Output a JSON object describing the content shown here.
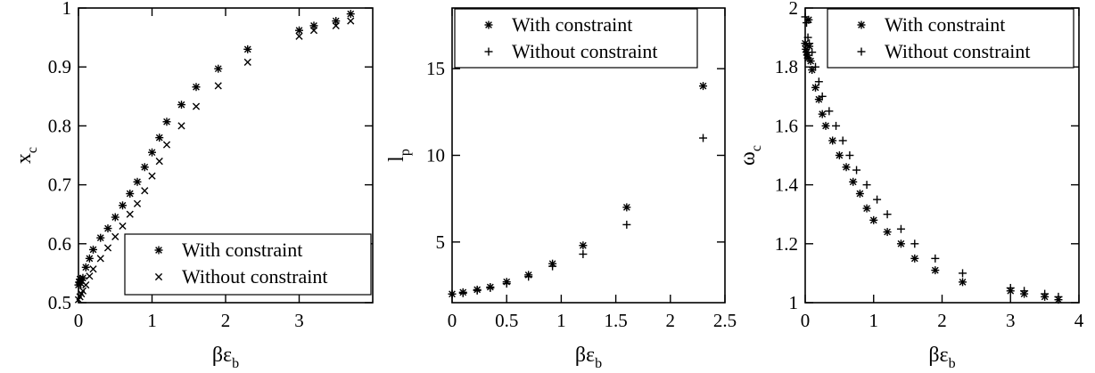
{
  "chart_data": [
    {
      "type": "scatter",
      "title": "",
      "xlabel": "βε",
      "xlabel_sub": "b",
      "ylabel": "x",
      "ylabel_sub": "c",
      "xlim": [
        0,
        4
      ],
      "ylim": [
        0.5,
        1.0
      ],
      "xticks": [
        0,
        1,
        2,
        3
      ],
      "xtick_labels": [
        "0",
        "1",
        "2",
        "3"
      ],
      "yticks": [
        0.5,
        0.6,
        0.7,
        0.8,
        0.9,
        1.0
      ],
      "ytick_labels": [
        "0.5",
        "0.6",
        "0.7",
        "0.8",
        "0.9",
        "1"
      ],
      "legend_position": "bottom-right",
      "grid": false,
      "series": [
        {
          "name": "With constraint",
          "marker": "asterisk",
          "points": [
            [
              0.0,
              0.53
            ],
            [
              0.01,
              0.535
            ],
            [
              0.02,
              0.54
            ],
            [
              0.03,
              0.533
            ],
            [
              0.04,
              0.538
            ],
            [
              0.06,
              0.542
            ],
            [
              0.1,
              0.56
            ],
            [
              0.15,
              0.575
            ],
            [
              0.2,
              0.59
            ],
            [
              0.3,
              0.61
            ],
            [
              0.4,
              0.626
            ],
            [
              0.5,
              0.645
            ],
            [
              0.6,
              0.665
            ],
            [
              0.7,
              0.685
            ],
            [
              0.8,
              0.705
            ],
            [
              0.9,
              0.73
            ],
            [
              1.0,
              0.755
            ],
            [
              1.1,
              0.78
            ],
            [
              1.2,
              0.807
            ],
            [
              1.4,
              0.836
            ],
            [
              1.6,
              0.866
            ],
            [
              1.9,
              0.897
            ],
            [
              2.3,
              0.93
            ],
            [
              3.0,
              0.962
            ],
            [
              3.2,
              0.97
            ],
            [
              3.5,
              0.978
            ],
            [
              3.7,
              0.99
            ]
          ]
        },
        {
          "name": "Without constraint",
          "marker": "cross",
          "points": [
            [
              0.0,
              0.505
            ],
            [
              0.02,
              0.51
            ],
            [
              0.04,
              0.515
            ],
            [
              0.06,
              0.52
            ],
            [
              0.1,
              0.53
            ],
            [
              0.15,
              0.545
            ],
            [
              0.2,
              0.557
            ],
            [
              0.3,
              0.575
            ],
            [
              0.4,
              0.593
            ],
            [
              0.5,
              0.612
            ],
            [
              0.6,
              0.63
            ],
            [
              0.7,
              0.65
            ],
            [
              0.8,
              0.668
            ],
            [
              0.9,
              0.69
            ],
            [
              1.0,
              0.715
            ],
            [
              1.1,
              0.74
            ],
            [
              1.2,
              0.768
            ],
            [
              1.4,
              0.8
            ],
            [
              1.6,
              0.833
            ],
            [
              1.9,
              0.868
            ],
            [
              2.3,
              0.908
            ],
            [
              3.0,
              0.952
            ],
            [
              3.2,
              0.962
            ],
            [
              3.5,
              0.97
            ],
            [
              3.7,
              0.978
            ]
          ]
        }
      ]
    },
    {
      "type": "scatter",
      "title": "",
      "xlabel": "βε",
      "xlabel_sub": "b",
      "ylabel": "l",
      "ylabel_sub": "p",
      "xlim": [
        0,
        2.5
      ],
      "ylim": [
        1.5,
        18.5
      ],
      "xticks": [
        0,
        0.5,
        1,
        1.5,
        2,
        2.5
      ],
      "xtick_labels": [
        "0",
        "0.5",
        "1",
        "1.5",
        "2",
        "2.5"
      ],
      "yticks": [
        5,
        10,
        15
      ],
      "ytick_labels": [
        "5",
        "10",
        "15"
      ],
      "legend_position": "top",
      "grid": false,
      "series": [
        {
          "name": "With constraint",
          "marker": "asterisk",
          "points": [
            [
              0.0,
              2.0
            ],
            [
              0.1,
              2.1
            ],
            [
              0.23,
              2.25
            ],
            [
              0.35,
              2.4
            ],
            [
              0.5,
              2.7
            ],
            [
              0.7,
              3.1
            ],
            [
              0.92,
              3.75
            ],
            [
              1.2,
              4.8
            ],
            [
              1.6,
              7.0
            ],
            [
              2.3,
              14.0
            ]
          ]
        },
        {
          "name": "Without constraint",
          "marker": "plus",
          "points": [
            [
              0.0,
              2.0
            ],
            [
              0.1,
              2.05
            ],
            [
              0.23,
              2.2
            ],
            [
              0.35,
              2.35
            ],
            [
              0.5,
              2.6
            ],
            [
              0.7,
              3.0
            ],
            [
              0.92,
              3.6
            ],
            [
              1.2,
              4.3
            ],
            [
              1.6,
              6.0
            ],
            [
              2.3,
              11.0
            ]
          ]
        }
      ]
    },
    {
      "type": "scatter",
      "title": "",
      "xlabel": "βε",
      "xlabel_sub": "b",
      "ylabel": "ω",
      "ylabel_sub": "c",
      "xlim": [
        0,
        4
      ],
      "ylim": [
        1.0,
        2.0
      ],
      "xticks": [
        0,
        1,
        2,
        3,
        4
      ],
      "xtick_labels": [
        "0",
        "1",
        "2",
        "3",
        "4"
      ],
      "yticks": [
        1.0,
        1.2,
        1.4,
        1.6,
        1.8,
        2.0
      ],
      "ytick_labels": [
        "1",
        "1.2",
        "1.4",
        "1.6",
        "1.8",
        "2"
      ],
      "legend_position": "top-right",
      "grid": false,
      "series": [
        {
          "name": "With constraint",
          "marker": "asterisk",
          "points": [
            [
              0.0,
              1.88
            ],
            [
              0.01,
              1.86
            ],
            [
              0.02,
              1.85
            ],
            [
              0.03,
              1.84
            ],
            [
              0.04,
              1.83
            ],
            [
              0.05,
              1.96
            ],
            [
              0.06,
              1.87
            ],
            [
              0.08,
              1.82
            ],
            [
              0.1,
              1.79
            ],
            [
              0.15,
              1.73
            ],
            [
              0.2,
              1.69
            ],
            [
              0.25,
              1.64
            ],
            [
              0.3,
              1.6
            ],
            [
              0.4,
              1.55
            ],
            [
              0.5,
              1.5
            ],
            [
              0.6,
              1.46
            ],
            [
              0.7,
              1.41
            ],
            [
              0.8,
              1.37
            ],
            [
              0.9,
              1.32
            ],
            [
              1.0,
              1.28
            ],
            [
              1.2,
              1.24
            ],
            [
              1.4,
              1.2
            ],
            [
              1.6,
              1.15
            ],
            [
              1.9,
              1.11
            ],
            [
              2.3,
              1.07
            ],
            [
              3.0,
              1.04
            ],
            [
              3.2,
              1.03
            ],
            [
              3.5,
              1.02
            ],
            [
              3.7,
              1.01
            ]
          ]
        },
        {
          "name": "Without constraint",
          "marker": "plus",
          "points": [
            [
              0.0,
              1.97
            ],
            [
              0.02,
              1.95
            ],
            [
              0.04,
              1.9
            ],
            [
              0.06,
              1.88
            ],
            [
              0.1,
              1.85
            ],
            [
              0.15,
              1.8
            ],
            [
              0.2,
              1.75
            ],
            [
              0.25,
              1.7
            ],
            [
              0.35,
              1.65
            ],
            [
              0.45,
              1.6
            ],
            [
              0.55,
              1.55
            ],
            [
              0.65,
              1.5
            ],
            [
              0.75,
              1.45
            ],
            [
              0.9,
              1.4
            ],
            [
              1.05,
              1.35
            ],
            [
              1.2,
              1.3
            ],
            [
              1.4,
              1.25
            ],
            [
              1.6,
              1.2
            ],
            [
              1.9,
              1.15
            ],
            [
              2.3,
              1.1
            ],
            [
              3.0,
              1.05
            ],
            [
              3.2,
              1.04
            ],
            [
              3.5,
              1.03
            ],
            [
              3.7,
              1.02
            ]
          ]
        }
      ]
    }
  ]
}
